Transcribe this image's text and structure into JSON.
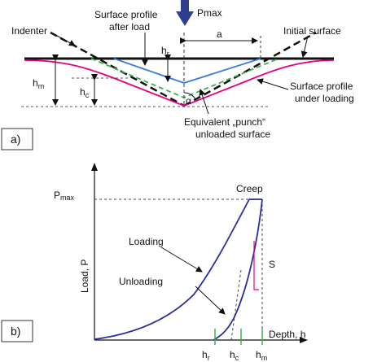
{
  "panel_a": {
    "panel_label": "a)",
    "labels": {
      "indenter": "Indenter",
      "surface_after_load_line1": "Surface profile",
      "surface_after_load_line2": "after load",
      "pmax": "Pmax",
      "initial_surface": "Initial surface",
      "a": "a",
      "hr_main": "h",
      "hr_sub": "r",
      "hm_main": "h",
      "hm_sub": "m",
      "hc_main": "h",
      "hc_sub": "c",
      "alpha": "α",
      "under_loading_line1": "Surface profile",
      "under_loading_line2": "under loading",
      "punch_line1": "Equivalent „punch“",
      "punch_line2": "unloaded surface"
    },
    "colors": {
      "loaded_profile": "#e6007e",
      "unloaded_profile": "#3b7dd8",
      "punch": "#3cb44b",
      "arrow": "#2f3f8f"
    }
  },
  "panel_b": {
    "panel_label": "b)",
    "labels": {
      "pmax_main": "P",
      "pmax_sub": "max",
      "creep": "Creep",
      "loading": "Loading",
      "unloading": "Unloading",
      "s": "S",
      "ylabel": "Load, P",
      "xlabel": "Depth, h",
      "hr_main": "h",
      "hr_sub": "r",
      "hc_main": "h",
      "hc_sub": "c",
      "hm_main": "h",
      "hm_sub": "m"
    },
    "colors": {
      "curve": "#2b2f9a",
      "slope_marker": "#e6007e",
      "tick": "#3cb44b"
    }
  }
}
